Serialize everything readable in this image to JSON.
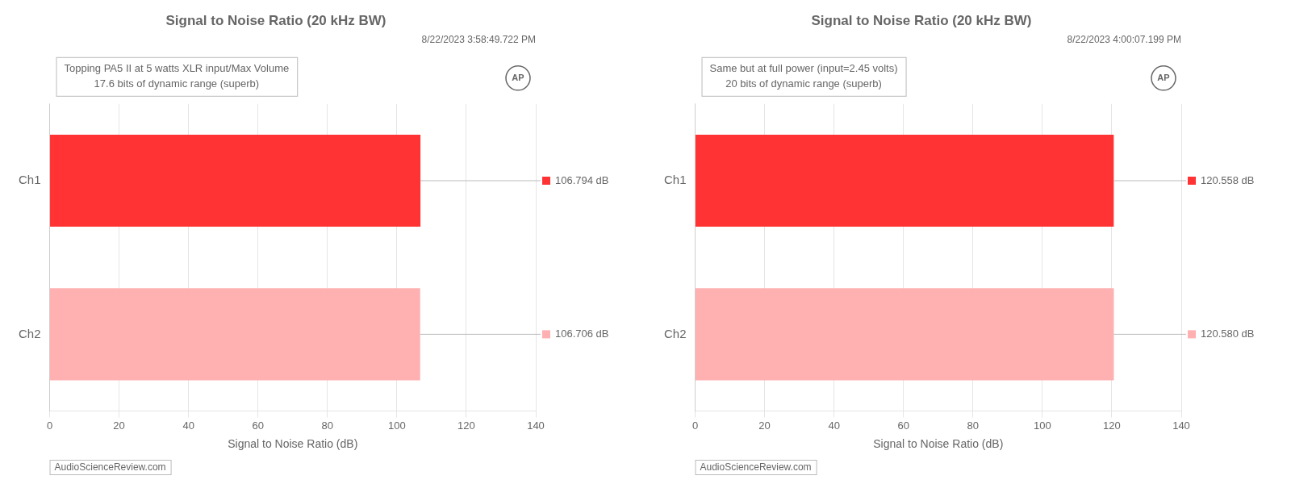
{
  "chart_data": [
    {
      "type": "bar",
      "orientation": "horizontal",
      "title": "Signal to Noise Ratio (20 kHz BW)",
      "subtitle": "8/22/2023 3:58:49.722 PM",
      "annotations": [
        "Topping PA5 II at 5 watts XLR input/Max Volume",
        "17.6 bits of dynamic range (superb)",
        "AudioScienceReview.com",
        "AP"
      ],
      "categories": [
        "Ch1",
        "Ch2"
      ],
      "values": [
        106.794,
        106.706
      ],
      "value_labels": [
        "106.794 dB",
        "106.706 dB"
      ],
      "data_labels": true,
      "colors": [
        "#FF3333",
        "#FFB0B0"
      ],
      "xlabel": "Signal to Noise Ratio (dB)",
      "xlim": [
        0,
        140
      ],
      "xticks": [
        0,
        20,
        40,
        60,
        80,
        100,
        120,
        140
      ],
      "grid": true
    },
    {
      "type": "bar",
      "orientation": "horizontal",
      "title": "Signal to Noise Ratio (20 kHz BW)",
      "subtitle": "8/22/2023 4:00:07.199 PM",
      "annotations": [
        "Same but at full power (input=2.45 volts)",
        "20 bits of dynamic range (superb)",
        "AudioScienceReview.com",
        "AP"
      ],
      "categories": [
        "Ch1",
        "Ch2"
      ],
      "values": [
        120.558,
        120.58
      ],
      "value_labels": [
        "120.558 dB",
        "120.580 dB"
      ],
      "data_labels": true,
      "colors": [
        "#FF3333",
        "#FFB0B0"
      ],
      "xlabel": "Signal to Noise Ratio (dB)",
      "xlim": [
        0,
        140
      ],
      "xticks": [
        0,
        20,
        40,
        60,
        80,
        100,
        120,
        140
      ],
      "grid": true
    }
  ]
}
